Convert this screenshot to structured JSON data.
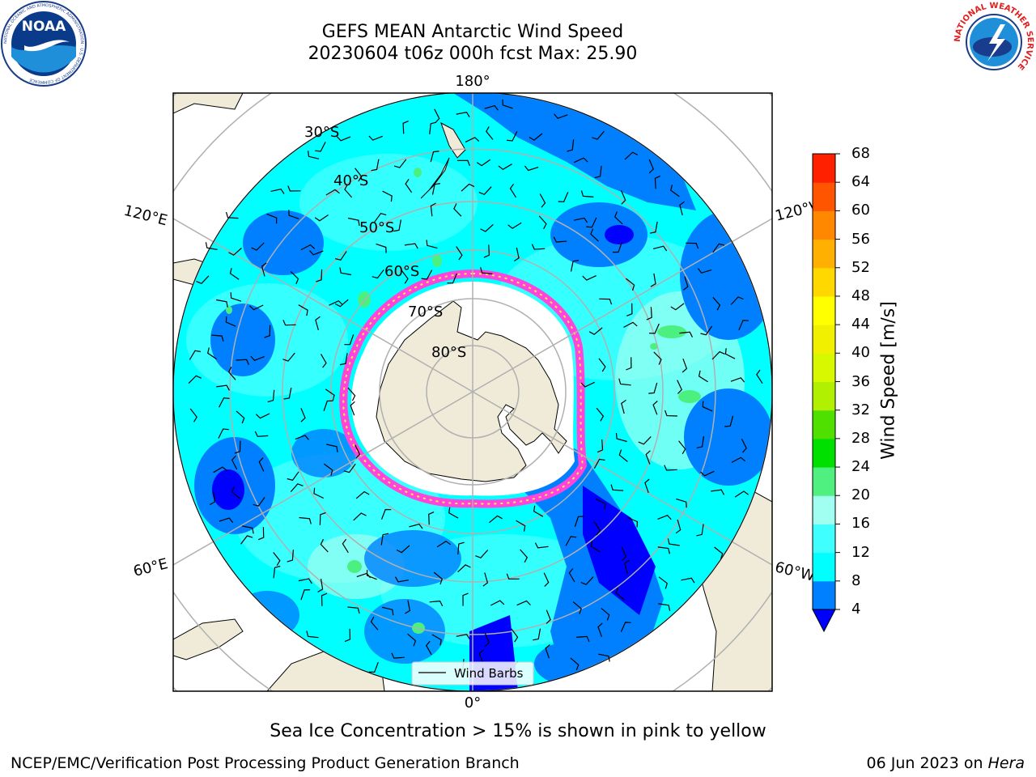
{
  "title": {
    "line1": "GEFS MEAN Antarctic Wind Speed",
    "line2": "20230604 t06z 000h fcst   Max: 25.90"
  },
  "map": {
    "projection": "south-polar-stereographic",
    "longitude_labels": {
      "top": "180°",
      "bottom": "0°",
      "upper_left": "120°E",
      "lower_left": "60°E",
      "upper_right": "120°W",
      "lower_right": "60°W"
    },
    "latitude_labels": [
      "30°S",
      "40°S",
      "50°S",
      "60°S",
      "70°S",
      "80°S"
    ],
    "legend_label": "Wind Barbs",
    "colors": {
      "land": "#efebd8",
      "ocean_low": "#00ffff",
      "wind_4_8": "#0080ff",
      "wind_0_4": "#0000ff",
      "wind_12_16": "#40ffff",
      "wind_16_20": "#a0fff0",
      "wind_20_24": "#4cf080",
      "sea_ice": "#ff44dd",
      "sea_ice_edge": "#ffee44"
    }
  },
  "colorbar": {
    "label": "Wind Speed [m/s]",
    "ticks": [
      "4",
      "8",
      "12",
      "16",
      "20",
      "24",
      "28",
      "32",
      "36",
      "40",
      "44",
      "48",
      "52",
      "56",
      "60",
      "64",
      "68"
    ],
    "colors": [
      "#0080ff",
      "#00ffff",
      "#40ffff",
      "#a0fff0",
      "#50f080",
      "#00e000",
      "#50e000",
      "#b0f000",
      "#d8f800",
      "#f0f000",
      "#ffff00",
      "#ffd800",
      "#ffb000",
      "#ff8800",
      "#ff5500",
      "#ff2000"
    ],
    "extend_color": "#0000ff"
  },
  "footer": {
    "note": "Sea Ice Concentration > 15% is shown in pink to yellow",
    "credit": "NCEP/EMC/Verification Post Processing Product Generation Branch",
    "date_prefix": "06 Jun 2023 on ",
    "date_host": "Hera"
  },
  "logos": {
    "left": "NOAA",
    "left_ring": "NATIONAL OCEANIC AND ATMOSPHERIC ADMINISTRATION · U.S. DEPARTMENT OF COMMERCE",
    "right_ring": "NATIONAL WEATHER SERVICE"
  }
}
